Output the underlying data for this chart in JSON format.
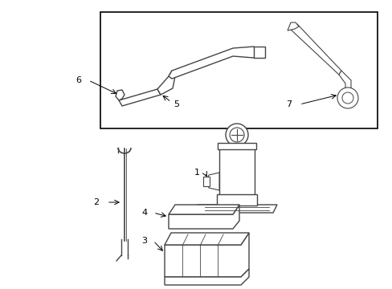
{
  "background_color": "#ffffff",
  "line_color": "#444444",
  "fig_width": 4.89,
  "fig_height": 3.6,
  "dpi": 100,
  "font_size": 8,
  "lw": 1.0
}
